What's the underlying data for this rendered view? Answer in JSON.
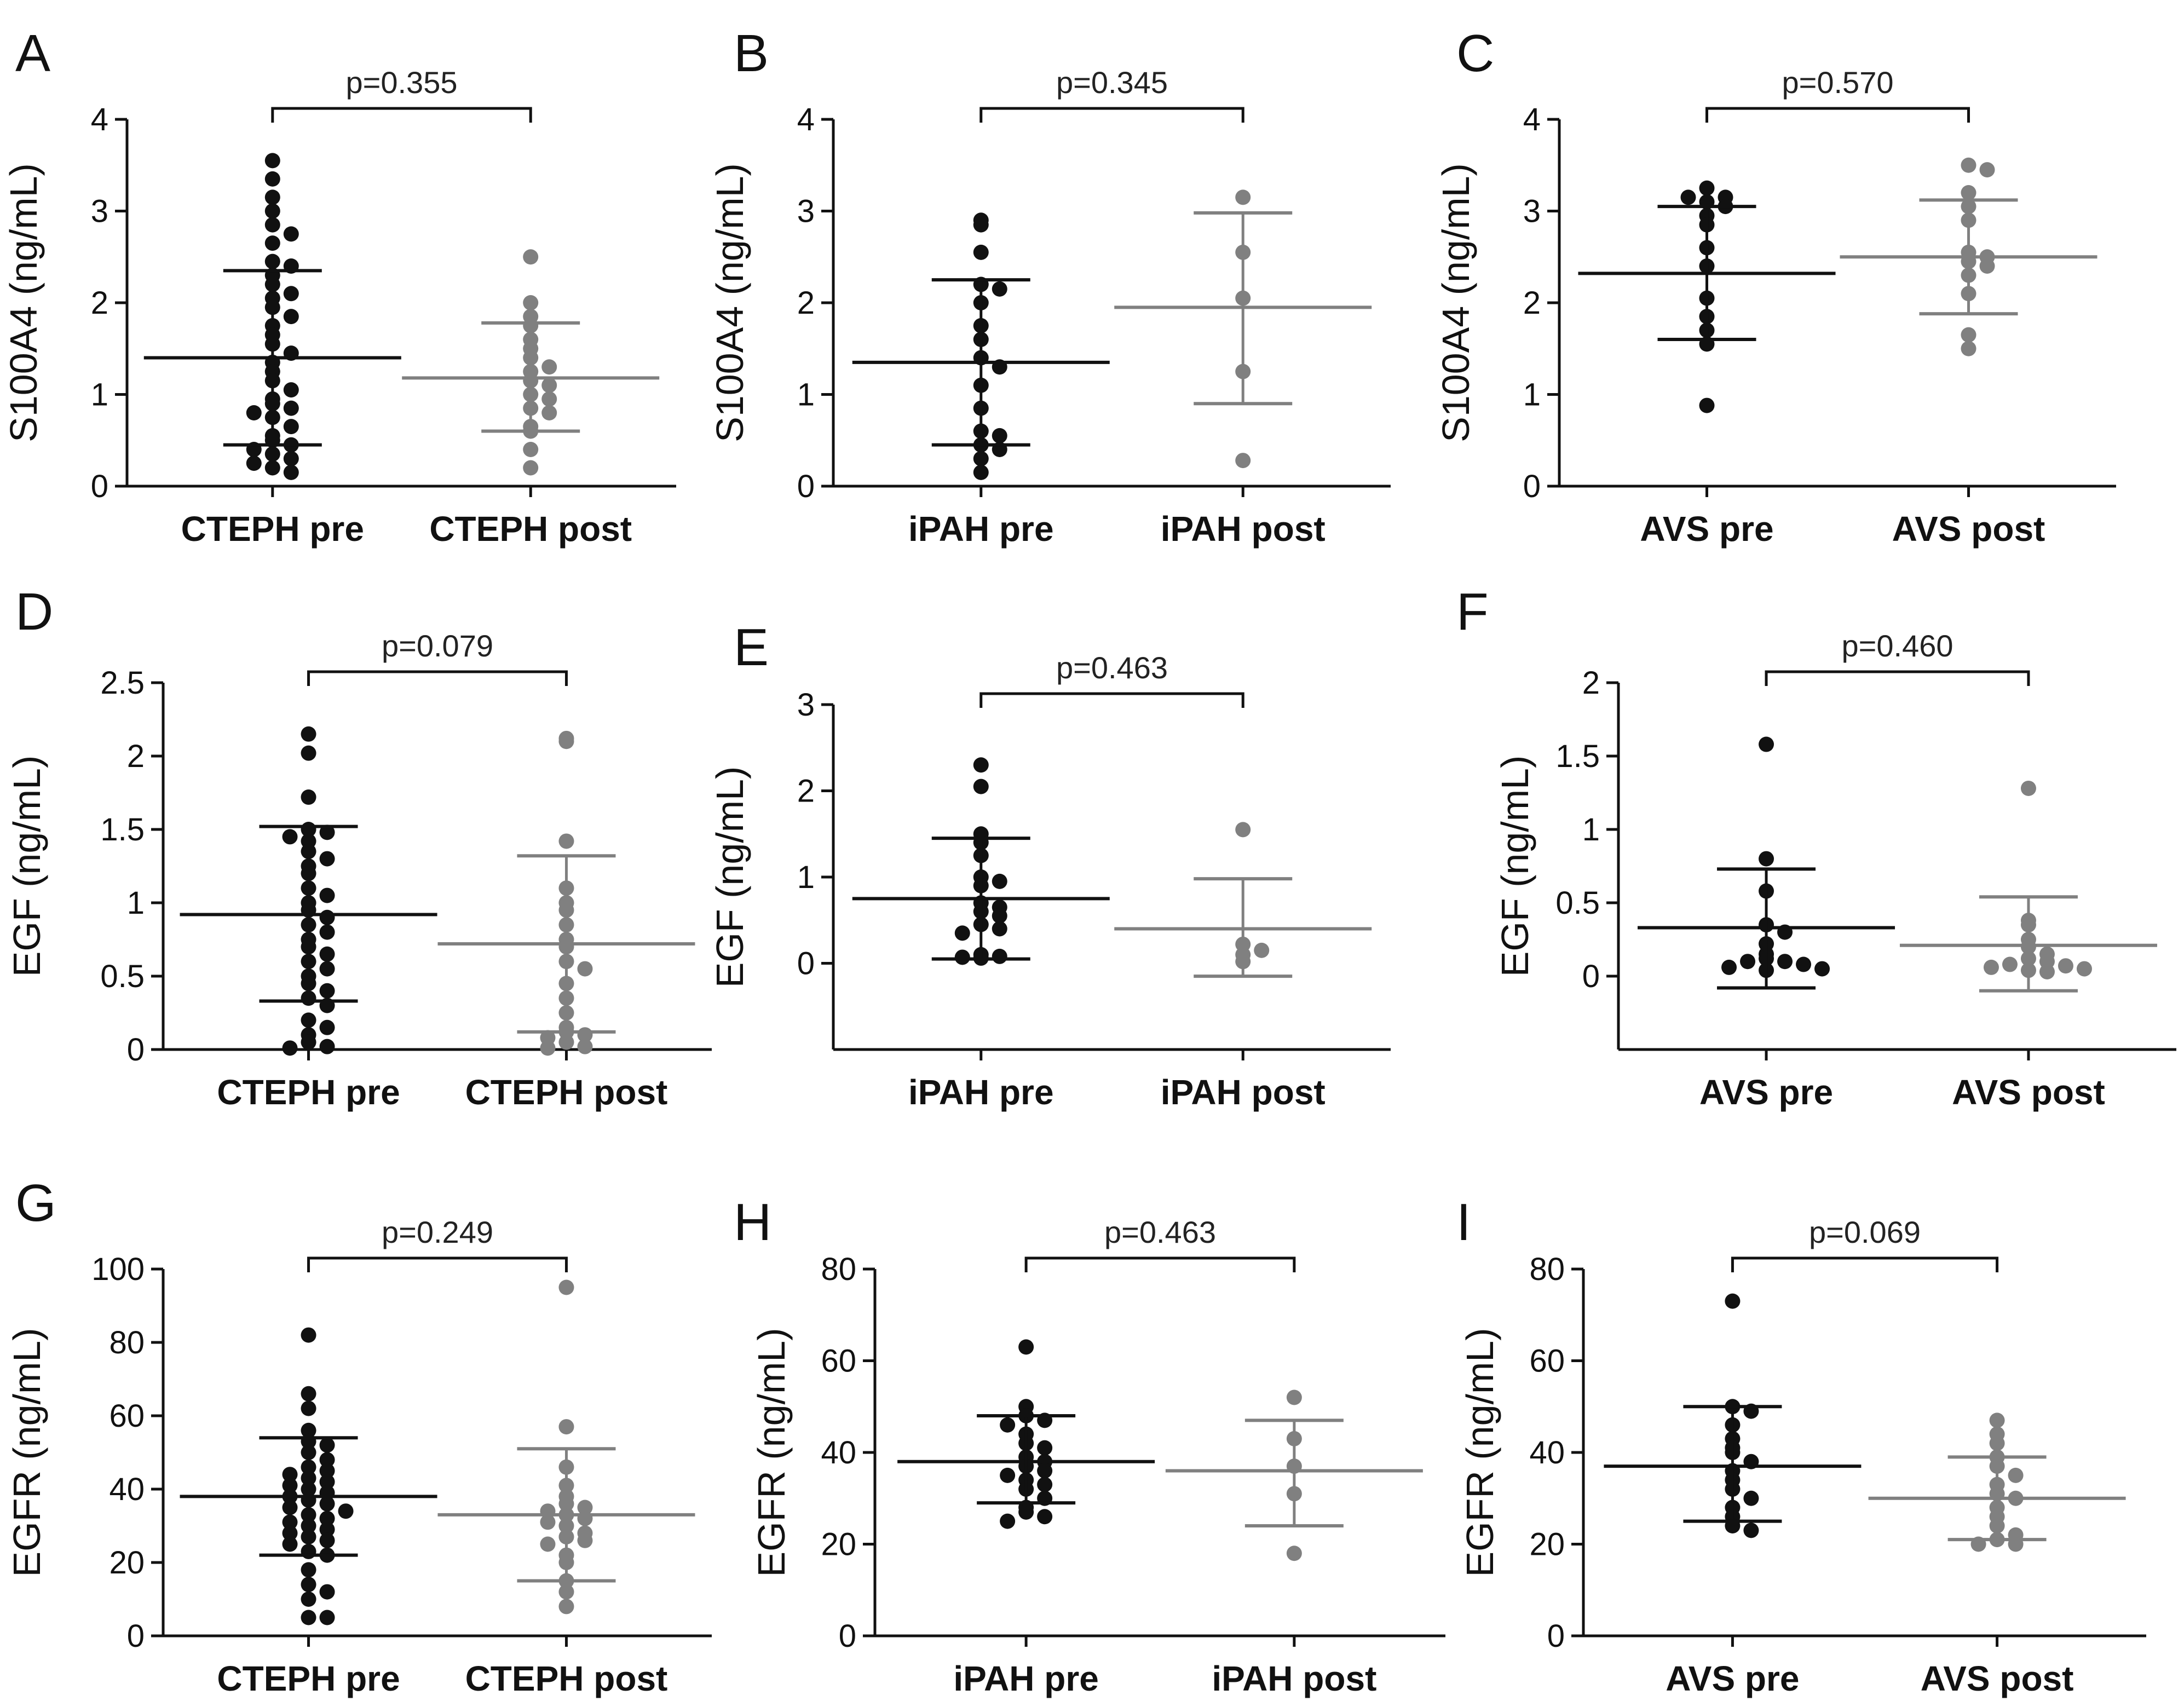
{
  "figure": {
    "colors": {
      "pre": "#111111",
      "post": "#808080",
      "axis": "#111111",
      "bracket": "#111111"
    }
  },
  "chart_data": [
    {
      "panel": "A",
      "type": "scatter",
      "ylabel": "S100A4 (ng/mL)",
      "ylim": [
        0,
        4
      ],
      "yticks": [
        0,
        1,
        2,
        3,
        4
      ],
      "ytick_labels": [
        "0",
        "1",
        "2",
        "3",
        "4"
      ],
      "categories": [
        "CTEPH pre",
        "CTEPH post"
      ],
      "p_value": "p=0.355",
      "series": [
        {
          "name": "CTEPH pre",
          "color": "#111111",
          "mean": 1.4,
          "sd_low": 0.45,
          "sd_high": 2.35,
          "values": [
            3.55,
            3.35,
            3.15,
            3.0,
            2.85,
            2.75,
            2.65,
            2.45,
            2.4,
            2.3,
            2.2,
            2.1,
            2.05,
            1.95,
            1.85,
            1.75,
            1.65,
            1.55,
            1.45,
            1.35,
            1.25,
            1.15,
            1.05,
            0.95,
            0.9,
            0.85,
            0.8,
            0.75,
            0.65,
            0.55,
            0.5,
            0.45,
            0.4,
            0.35,
            0.3,
            0.25,
            0.2,
            0.15
          ]
        },
        {
          "name": "CTEPH post",
          "color": "#808080",
          "mean": 1.18,
          "sd_low": 0.6,
          "sd_high": 1.78,
          "values": [
            2.5,
            2.0,
            1.85,
            1.75,
            1.6,
            1.5,
            1.4,
            1.3,
            1.25,
            1.15,
            1.1,
            1.0,
            0.95,
            0.85,
            0.8,
            0.65,
            0.6,
            0.4,
            0.2
          ]
        }
      ]
    },
    {
      "panel": "B",
      "type": "scatter",
      "ylabel": "S100A4 (ng/mL)",
      "ylim": [
        0,
        4
      ],
      "yticks": [
        0,
        1,
        2,
        3,
        4
      ],
      "ytick_labels": [
        "0",
        "1",
        "2",
        "3",
        "4"
      ],
      "categories": [
        "iPAH pre",
        "iPAH post"
      ],
      "p_value": "p=0.345",
      "series": [
        {
          "name": "iPAH pre",
          "color": "#111111",
          "mean": 1.35,
          "sd_low": 0.45,
          "sd_high": 2.25,
          "values": [
            2.9,
            2.85,
            2.55,
            2.2,
            2.15,
            2.0,
            1.75,
            1.6,
            1.4,
            1.3,
            1.1,
            0.85,
            0.6,
            0.55,
            0.45,
            0.4,
            0.3,
            0.15
          ]
        },
        {
          "name": "iPAH post",
          "color": "#808080",
          "mean": 1.95,
          "sd_low": 0.9,
          "sd_high": 2.98,
          "values": [
            3.15,
            2.55,
            2.05,
            1.25,
            0.28
          ]
        }
      ]
    },
    {
      "panel": "C",
      "type": "scatter",
      "ylabel": "S100A4 (ng/mL)",
      "ylim": [
        0,
        4
      ],
      "yticks": [
        0,
        1,
        2,
        3,
        4
      ],
      "ytick_labels": [
        "0",
        "1",
        "2",
        "3",
        "4"
      ],
      "categories": [
        "AVS pre",
        "AVS post"
      ],
      "p_value": "p=0.570",
      "series": [
        {
          "name": "AVS pre",
          "color": "#111111",
          "mean": 2.32,
          "sd_low": 1.6,
          "sd_high": 3.05,
          "values": [
            3.25,
            3.15,
            3.15,
            3.1,
            3.05,
            2.95,
            2.85,
            2.6,
            2.4,
            2.05,
            1.85,
            1.7,
            1.55,
            0.88
          ]
        },
        {
          "name": "AVS post",
          "color": "#808080",
          "mean": 2.5,
          "sd_low": 1.88,
          "sd_high": 3.12,
          "values": [
            3.5,
            3.45,
            3.2,
            3.05,
            2.9,
            2.55,
            2.5,
            2.45,
            2.4,
            2.3,
            2.1,
            1.65,
            1.5
          ]
        }
      ]
    },
    {
      "panel": "D",
      "type": "scatter",
      "ylabel": "EGF (ng/mL)",
      "ylim": [
        0,
        2.5
      ],
      "yticks": [
        0,
        0.5,
        1,
        1.5,
        2,
        2.5
      ],
      "ytick_labels": [
        "0",
        "0.5",
        "1",
        "1.5",
        "2",
        "2.5"
      ],
      "categories": [
        "CTEPH pre",
        "CTEPH post"
      ],
      "p_value": "p=0.079",
      "series": [
        {
          "name": "CTEPH pre",
          "color": "#111111",
          "mean": 0.92,
          "sd_low": 0.33,
          "sd_high": 1.52,
          "values": [
            2.15,
            2.02,
            1.72,
            1.5,
            1.48,
            1.45,
            1.42,
            1.35,
            1.3,
            1.25,
            1.2,
            1.1,
            1.05,
            1.0,
            0.95,
            0.9,
            0.85,
            0.8,
            0.75,
            0.7,
            0.65,
            0.6,
            0.55,
            0.5,
            0.45,
            0.4,
            0.35,
            0.3,
            0.2,
            0.15,
            0.1,
            0.05,
            0.02,
            0.01
          ]
        },
        {
          "name": "CTEPH post",
          "color": "#808080",
          "mean": 0.72,
          "sd_low": 0.12,
          "sd_high": 1.32,
          "values": [
            2.12,
            2.1,
            1.42,
            1.1,
            1.0,
            0.95,
            0.85,
            0.75,
            0.7,
            0.6,
            0.55,
            0.45,
            0.35,
            0.25,
            0.15,
            0.12,
            0.1,
            0.08,
            0.05,
            0.02,
            0.01
          ]
        }
      ]
    },
    {
      "panel": "E",
      "type": "scatter",
      "ylabel": "EGF (ng/mL)",
      "ylim": [
        -1,
        3
      ],
      "yticks": [
        0,
        1,
        2,
        3
      ],
      "ytick_labels": [
        "0",
        "1",
        "2",
        "3"
      ],
      "categories": [
        "iPAH pre",
        "iPAH post"
      ],
      "p_value": "p=0.463",
      "series": [
        {
          "name": "iPAH pre",
          "color": "#111111",
          "mean": 0.75,
          "sd_low": 0.05,
          "sd_high": 1.45,
          "values": [
            2.3,
            2.05,
            1.5,
            1.4,
            1.25,
            1.0,
            0.95,
            0.9,
            0.7,
            0.65,
            0.6,
            0.55,
            0.45,
            0.4,
            0.35,
            0.1,
            0.08,
            0.07,
            0.06
          ]
        },
        {
          "name": "iPAH post",
          "color": "#808080",
          "mean": 0.4,
          "sd_low": -0.15,
          "sd_high": 0.98,
          "values": [
            1.55,
            0.22,
            0.1,
            0.02,
            0.15
          ]
        }
      ]
    },
    {
      "panel": "F",
      "type": "scatter",
      "ylabel": "EGF (ng/mL)",
      "ylim": [
        -0.5,
        2
      ],
      "yticks": [
        0,
        0.5,
        1,
        1.5,
        2
      ],
      "ytick_labels": [
        "0",
        "0.5",
        "1",
        "1.5",
        "2"
      ],
      "categories": [
        "AVS pre",
        "AVS post"
      ],
      "p_value": "p=0.460",
      "series": [
        {
          "name": "AVS pre",
          "color": "#111111",
          "mean": 0.33,
          "sd_low": -0.08,
          "sd_high": 0.73,
          "values": [
            1.58,
            0.8,
            0.58,
            0.35,
            0.3,
            0.22,
            0.15,
            0.12,
            0.1,
            0.1,
            0.08,
            0.06,
            0.05,
            0.04
          ]
        },
        {
          "name": "AVS post",
          "color": "#808080",
          "mean": 0.21,
          "sd_low": -0.1,
          "sd_high": 0.54,
          "values": [
            1.28,
            0.38,
            0.35,
            0.25,
            0.2,
            0.15,
            0.12,
            0.1,
            0.08,
            0.07,
            0.06,
            0.05,
            0.04,
            0.03
          ]
        }
      ]
    },
    {
      "panel": "G",
      "type": "scatter",
      "ylabel": "EGFR (ng/mL)",
      "ylim": [
        0,
        100
      ],
      "yticks": [
        0,
        20,
        40,
        60,
        80,
        100
      ],
      "ytick_labels": [
        "0",
        "20",
        "40",
        "60",
        "80",
        "100"
      ],
      "categories": [
        "CTEPH pre",
        "CTEPH post"
      ],
      "p_value": "p=0.249",
      "series": [
        {
          "name": "CTEPH pre",
          "color": "#111111",
          "mean": 38,
          "sd_low": 22,
          "sd_high": 54,
          "values": [
            82,
            66,
            62,
            56,
            53,
            52,
            50,
            48,
            46,
            45,
            44,
            43,
            42,
            41,
            40,
            39,
            38,
            37,
            36,
            35,
            34,
            33,
            32,
            31,
            30,
            29,
            28,
            27,
            26,
            25,
            23,
            22,
            18,
            14,
            12,
            10,
            5,
            5
          ]
        },
        {
          "name": "CTEPH post",
          "color": "#808080",
          "mean": 33,
          "sd_low": 15,
          "sd_high": 51,
          "values": [
            95,
            57,
            46,
            41,
            38,
            36,
            35,
            34,
            33,
            32,
            31,
            30,
            28,
            27,
            26,
            25,
            22,
            20,
            15,
            12,
            8
          ]
        }
      ]
    },
    {
      "panel": "H",
      "type": "scatter",
      "ylabel": "EGFR (ng/mL)",
      "ylim": [
        0,
        80
      ],
      "yticks": [
        0,
        20,
        40,
        60,
        80
      ],
      "ytick_labels": [
        "0",
        "20",
        "40",
        "60",
        "80"
      ],
      "categories": [
        "iPAH pre",
        "iPAH post"
      ],
      "p_value": "p=0.463",
      "series": [
        {
          "name": "iPAH pre",
          "color": "#111111",
          "mean": 38,
          "sd_low": 29,
          "sd_high": 48,
          "values": [
            63,
            50,
            48,
            47,
            46,
            44,
            42,
            41,
            39,
            38,
            37,
            36,
            35,
            34,
            33,
            32,
            30,
            28,
            27,
            26,
            25
          ]
        },
        {
          "name": "iPAH post",
          "color": "#808080",
          "mean": 36,
          "sd_low": 24,
          "sd_high": 47,
          "values": [
            52,
            43,
            37,
            31,
            18
          ]
        }
      ]
    },
    {
      "panel": "I",
      "type": "scatter",
      "ylabel": "EGFR (ng/mL)",
      "ylim": [
        0,
        80
      ],
      "yticks": [
        0,
        20,
        40,
        60,
        80
      ],
      "ytick_labels": [
        "0",
        "20",
        "40",
        "60",
        "80"
      ],
      "categories": [
        "AVS pre",
        "AVS post"
      ],
      "p_value": "p=0.069",
      "series": [
        {
          "name": "AVS pre",
          "color": "#111111",
          "mean": 37,
          "sd_low": 25,
          "sd_high": 50,
          "values": [
            73,
            50,
            49,
            46,
            43,
            41,
            40,
            38,
            36,
            34,
            32,
            30,
            28,
            26,
            24,
            23
          ]
        },
        {
          "name": "AVS post",
          "color": "#808080",
          "mean": 30,
          "sd_low": 21,
          "sd_high": 39,
          "values": [
            47,
            44,
            42,
            39,
            37,
            35,
            33,
            31,
            30,
            28,
            26,
            24,
            22,
            21,
            20,
            20
          ]
        }
      ]
    }
  ]
}
